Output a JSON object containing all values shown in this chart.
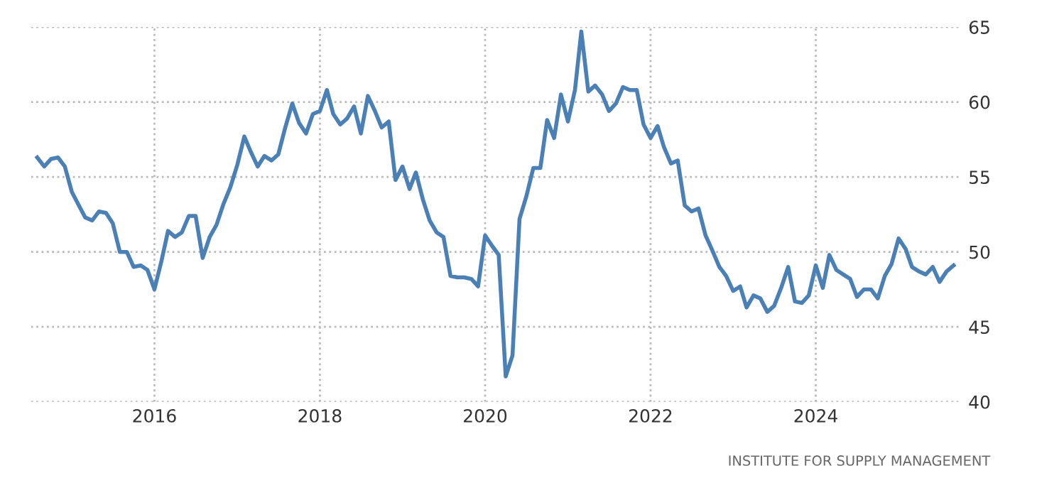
{
  "chart_data": {
    "type": "line",
    "x": [
      "2014-08",
      "2014-09",
      "2014-10",
      "2014-11",
      "2014-12",
      "2015-01",
      "2015-02",
      "2015-03",
      "2015-04",
      "2015-05",
      "2015-06",
      "2015-07",
      "2015-08",
      "2015-09",
      "2015-10",
      "2015-11",
      "2015-12",
      "2016-01",
      "2016-02",
      "2016-03",
      "2016-04",
      "2016-05",
      "2016-06",
      "2016-07",
      "2016-08",
      "2016-09",
      "2016-10",
      "2016-11",
      "2016-12",
      "2017-01",
      "2017-02",
      "2017-03",
      "2017-04",
      "2017-05",
      "2017-06",
      "2017-07",
      "2017-08",
      "2017-09",
      "2017-10",
      "2017-11",
      "2017-12",
      "2018-01",
      "2018-02",
      "2018-03",
      "2018-04",
      "2018-05",
      "2018-06",
      "2018-07",
      "2018-08",
      "2018-09",
      "2018-10",
      "2018-11",
      "2018-12",
      "2019-01",
      "2019-02",
      "2019-03",
      "2019-04",
      "2019-05",
      "2019-06",
      "2019-07",
      "2019-08",
      "2019-09",
      "2019-10",
      "2019-11",
      "2019-12",
      "2020-01",
      "2020-02",
      "2020-03",
      "2020-04",
      "2020-05",
      "2020-06",
      "2020-07",
      "2020-08",
      "2020-09",
      "2020-10",
      "2020-11",
      "2020-12",
      "2021-01",
      "2021-02",
      "2021-03",
      "2021-04",
      "2021-05",
      "2021-06",
      "2021-07",
      "2021-08",
      "2021-09",
      "2021-10",
      "2021-11",
      "2021-12",
      "2022-01",
      "2022-02",
      "2022-03",
      "2022-04",
      "2022-05",
      "2022-06",
      "2022-07",
      "2022-08",
      "2022-09",
      "2022-10",
      "2022-11",
      "2022-12",
      "2023-01",
      "2023-02",
      "2023-03",
      "2023-04",
      "2023-05",
      "2023-06",
      "2023-07",
      "2023-08",
      "2023-09",
      "2023-10",
      "2023-11",
      "2023-12",
      "2024-01",
      "2024-02",
      "2024-03",
      "2024-04",
      "2024-05",
      "2024-06",
      "2024-07",
      "2024-08",
      "2024-09",
      "2024-10",
      "2024-11",
      "2024-12",
      "2025-01",
      "2025-02",
      "2025-03",
      "2025-04",
      "2025-05",
      "2025-06",
      "2025-07",
      "2025-08",
      "2025-09"
    ],
    "series": [
      {
        "color": "#4a80b6",
        "values": [
          56.3,
          55.7,
          56.2,
          56.3,
          55.7,
          54.0,
          53.1,
          52.3,
          52.1,
          52.7,
          52.6,
          51.9,
          50.0,
          50.0,
          49.0,
          49.1,
          48.8,
          47.5,
          49.4,
          51.4,
          51.0,
          51.3,
          52.4,
          52.4,
          49.6,
          51.0,
          51.8,
          53.2,
          54.3,
          55.8,
          57.7,
          56.7,
          55.7,
          56.4,
          56.1,
          56.5,
          58.3,
          59.9,
          58.6,
          57.9,
          59.2,
          59.4,
          60.8,
          59.2,
          58.5,
          58.9,
          59.7,
          57.9,
          60.4,
          59.4,
          58.3,
          58.7,
          54.8,
          55.7,
          54.2,
          55.3,
          53.5,
          52.1,
          51.3,
          51.0,
          48.4,
          48.3,
          48.3,
          48.2,
          47.7,
          51.1,
          50.4,
          49.8,
          41.7,
          43.1,
          52.2,
          53.7,
          55.6,
          55.6,
          58.8,
          57.6,
          60.5,
          58.7,
          60.8,
          64.7,
          60.7,
          61.1,
          60.5,
          59.4,
          59.9,
          61.0,
          60.8,
          60.8,
          58.5,
          57.6,
          58.4,
          57.0,
          55.9,
          56.1,
          53.1,
          52.7,
          52.9,
          51.1,
          50.1,
          49.0,
          48.4,
          47.4,
          47.7,
          46.3,
          47.1,
          46.9,
          46.0,
          46.4,
          47.6,
          49.0,
          46.7,
          46.6,
          47.1,
          49.1,
          47.6,
          49.8,
          48.8,
          48.5,
          48.2,
          47.0,
          47.5,
          47.5,
          46.9,
          48.4,
          49.2,
          50.9,
          50.2,
          49.0,
          48.7,
          48.5,
          49.0,
          48.0,
          48.7,
          49.1
        ]
      }
    ],
    "xlim": [
      "2014-07-05",
      "2025-10-05"
    ],
    "xticks": [
      {
        "value": "2016-01-01",
        "label": "2016"
      },
      {
        "value": "2018-01-01",
        "label": "2018"
      },
      {
        "value": "2020-01-01",
        "label": "2020"
      },
      {
        "value": "2022-01-01",
        "label": "2022"
      },
      {
        "value": "2024-01-01",
        "label": "2024"
      }
    ],
    "ylim": [
      40,
      65
    ],
    "yticks": [
      40,
      45,
      50,
      55,
      60,
      65
    ],
    "grid": true,
    "line_style": "solid",
    "annotations": [
      "INSTITUTE FOR SUPPLY MANAGEMENT"
    ]
  }
}
